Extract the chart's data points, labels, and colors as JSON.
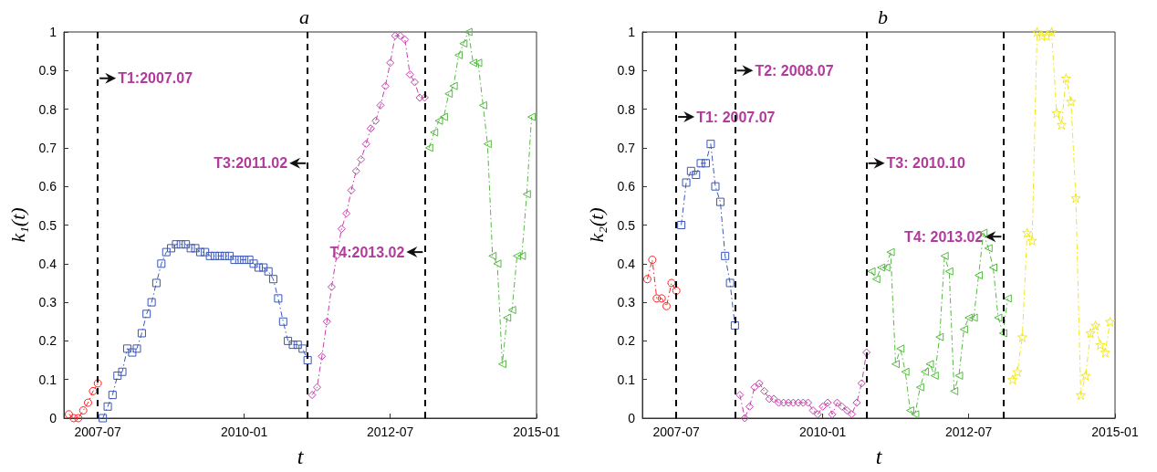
{
  "chart_data": [
    {
      "type": "line",
      "title": "a",
      "xlabel": "t",
      "ylabel": "k₁(t)",
      "xlim": [
        "2006-12",
        "2015-01"
      ],
      "xticks": [
        "2007-07",
        "2010-01",
        "2012-07",
        "2015-01"
      ],
      "ylim": [
        0,
        1
      ],
      "yticks": [
        0,
        0.1,
        0.2,
        0.3,
        0.4,
        0.5,
        0.6,
        0.7,
        0.8,
        0.9,
        1
      ],
      "grid": false,
      "legend": false,
      "line_style": "dashed",
      "series": [
        {
          "color": "#ff2020",
          "marker": "circle",
          "x": [
            "2007-01",
            "2007-02",
            "2007-03",
            "2007-04",
            "2007-05",
            "2007-06",
            "2007-07"
          ],
          "values": [
            0.01,
            0,
            0,
            0.02,
            0.04,
            0.07,
            0.09
          ]
        },
        {
          "color": "#3a56b8",
          "marker": "square",
          "x": [
            "2007-08",
            "2007-09",
            "2007-10",
            "2007-11",
            "2007-12",
            "2008-01",
            "2008-02",
            "2008-03",
            "2008-04",
            "2008-05",
            "2008-06",
            "2008-07",
            "2008-08",
            "2008-09",
            "2008-10",
            "2008-11",
            "2008-12",
            "2009-01",
            "2009-02",
            "2009-03",
            "2009-04",
            "2009-05",
            "2009-06",
            "2009-07",
            "2009-08",
            "2009-09",
            "2009-10",
            "2009-11",
            "2009-12",
            "2010-01",
            "2010-02",
            "2010-03",
            "2010-04",
            "2010-05",
            "2010-06",
            "2010-07",
            "2010-08",
            "2010-09",
            "2010-10",
            "2010-11",
            "2010-12",
            "2011-01",
            "2011-02"
          ],
          "values": [
            0,
            0.03,
            0.06,
            0.11,
            0.12,
            0.18,
            0.17,
            0.18,
            0.22,
            0.27,
            0.3,
            0.35,
            0.4,
            0.43,
            0.44,
            0.45,
            0.45,
            0.45,
            0.44,
            0.44,
            0.43,
            0.43,
            0.42,
            0.42,
            0.42,
            0.42,
            0.42,
            0.41,
            0.41,
            0.41,
            0.41,
            0.4,
            0.39,
            0.39,
            0.38,
            0.36,
            0.31,
            0.25,
            0.2,
            0.19,
            0.19,
            0.18,
            0.15
          ]
        },
        {
          "color": "#c040a8",
          "marker": "diamond",
          "x": [
            "2011-03",
            "2011-04",
            "2011-05",
            "2011-06",
            "2011-07",
            "2011-08",
            "2011-09",
            "2011-10",
            "2011-11",
            "2011-12",
            "2012-01",
            "2012-02",
            "2012-03",
            "2012-04",
            "2012-05",
            "2012-06",
            "2012-07",
            "2012-08",
            "2012-09",
            "2012-10",
            "2012-11",
            "2012-12",
            "2013-01",
            "2013-02"
          ],
          "values": [
            0.06,
            0.08,
            0.16,
            0.25,
            0.34,
            0.42,
            0.49,
            0.53,
            0.59,
            0.64,
            0.67,
            0.71,
            0.75,
            0.77,
            0.81,
            0.86,
            0.92,
            0.99,
            0.99,
            0.98,
            0.89,
            0.87,
            0.83,
            0.83
          ]
        },
        {
          "color": "#55bb40",
          "marker": "triangle",
          "x": [
            "2013-03",
            "2013-04",
            "2013-05",
            "2013-06",
            "2013-07",
            "2013-08",
            "2013-09",
            "2013-10",
            "2013-11",
            "2013-12",
            "2014-01",
            "2014-02",
            "2014-03",
            "2014-04",
            "2014-05",
            "2014-06",
            "2014-07",
            "2014-08",
            "2014-09",
            "2014-10",
            "2014-11",
            "2014-12"
          ],
          "values": [
            0.7,
            0.74,
            0.77,
            0.78,
            0.84,
            0.86,
            0.94,
            0.97,
            1,
            0.92,
            0.92,
            0.81,
            0.71,
            0.42,
            0.4,
            0.14,
            0.26,
            0.28,
            0.42,
            0.42,
            0.58,
            0.78
          ]
        }
      ],
      "ref_lines": [
        {
          "axis": "x",
          "value": "2007-07",
          "color": "#000000",
          "line_style": "dashed"
        },
        {
          "axis": "x",
          "value": "2011-02",
          "color": "#000000",
          "line_style": "dashed"
        },
        {
          "axis": "x",
          "value": "2013-02",
          "color": "#000000",
          "line_style": "dashed"
        }
      ],
      "annotations": [
        {
          "text": "T1:2007.07",
          "x": "2007-07",
          "y": 0.88
        },
        {
          "text": "T3:2011.02",
          "x": "2011-02",
          "y": 0.66
        },
        {
          "text": "T4:2013.02",
          "x": "2013-02",
          "y": 0.43
        }
      ]
    },
    {
      "type": "line",
      "title": "b",
      "xlabel": "t",
      "ylabel": "k₂(t)",
      "xlim": [
        "2006-12",
        "2015-01"
      ],
      "xticks": [
        "2007-07",
        "2010-01",
        "2012-07",
        "2015-01"
      ],
      "ylim": [
        0,
        1
      ],
      "yticks": [
        0,
        0.1,
        0.2,
        0.3,
        0.4,
        0.5,
        0.6,
        0.7,
        0.8,
        0.9,
        1
      ],
      "grid": false,
      "legend": false,
      "line_style": "dashed",
      "series": [
        {
          "color": "#ff2020",
          "marker": "circle",
          "x": [
            "2007-01",
            "2007-02",
            "2007-03",
            "2007-04",
            "2007-05",
            "2007-06",
            "2007-07"
          ],
          "values": [
            0.36,
            0.41,
            0.31,
            0.31,
            0.29,
            0.35,
            0.33
          ]
        },
        {
          "color": "#3a56b8",
          "marker": "square",
          "x": [
            "2007-08",
            "2007-09",
            "2007-10",
            "2007-11",
            "2007-12",
            "2008-01",
            "2008-02",
            "2008-03",
            "2008-04",
            "2008-05",
            "2008-06",
            "2008-07"
          ],
          "values": [
            0.5,
            0.61,
            0.64,
            0.63,
            0.66,
            0.66,
            0.71,
            0.6,
            0.56,
            0.42,
            0.35,
            0.24
          ]
        },
        {
          "color": "#c040a8",
          "marker": "diamond",
          "x": [
            "2008-08",
            "2008-09",
            "2008-10",
            "2008-11",
            "2008-12",
            "2009-01",
            "2009-02",
            "2009-03",
            "2009-04",
            "2009-05",
            "2009-06",
            "2009-07",
            "2009-08",
            "2009-09",
            "2009-10",
            "2009-11",
            "2009-12",
            "2010-01",
            "2010-02",
            "2010-03",
            "2010-04",
            "2010-05",
            "2010-06",
            "2010-07",
            "2010-08",
            "2010-09",
            "2010-10"
          ],
          "values": [
            0.06,
            0,
            0.03,
            0.08,
            0.09,
            0.07,
            0.05,
            0.05,
            0.04,
            0.04,
            0.04,
            0.04,
            0.04,
            0.04,
            0.04,
            0.02,
            0.01,
            0.03,
            0.04,
            0.01,
            0.04,
            0.03,
            0.02,
            0.01,
            0.04,
            0.09,
            0.17
          ]
        },
        {
          "color": "#55bb40",
          "marker": "triangle",
          "x": [
            "2010-11",
            "2010-12",
            "2011-01",
            "2011-02",
            "2011-03",
            "2011-04",
            "2011-05",
            "2011-06",
            "2011-07",
            "2011-08",
            "2011-09",
            "2011-10",
            "2011-11",
            "2011-12",
            "2012-01",
            "2012-02",
            "2012-03",
            "2012-04",
            "2012-05",
            "2012-06",
            "2012-07",
            "2012-08",
            "2012-09",
            "2012-10",
            "2012-11",
            "2012-12",
            "2013-01",
            "2013-02",
            "2013-03"
          ],
          "values": [
            0.38,
            0.36,
            0.39,
            0.39,
            0.43,
            0.14,
            0.18,
            0.12,
            0.02,
            0.01,
            0.08,
            0.12,
            0.14,
            0.11,
            0.21,
            0.42,
            0.38,
            0.07,
            0.11,
            0.23,
            0.26,
            0.26,
            0.37,
            0.48,
            0.44,
            0.39,
            0.26,
            0.22,
            0.31
          ]
        },
        {
          "color": "#f0e820",
          "marker": "star",
          "x": [
            "2013-04",
            "2013-05",
            "2013-06",
            "2013-07",
            "2013-08",
            "2013-09",
            "2013-10",
            "2013-11",
            "2013-12",
            "2014-01",
            "2014-02",
            "2014-03",
            "2014-04",
            "2014-05",
            "2014-06",
            "2014-07",
            "2014-08",
            "2014-09",
            "2014-10",
            "2014-11",
            "2014-12"
          ],
          "values": [
            0.1,
            0.12,
            0.21,
            0.48,
            0.46,
            1,
            0.99,
            0.99,
            1,
            0.79,
            0.76,
            0.88,
            0.82,
            0.57,
            0.06,
            0.11,
            0.22,
            0.24,
            0.19,
            0.17,
            0.25
          ]
        }
      ],
      "ref_lines": [
        {
          "axis": "x",
          "value": "2007-07",
          "color": "#000000",
          "line_style": "dashed"
        },
        {
          "axis": "x",
          "value": "2008-07",
          "color": "#000000",
          "line_style": "dashed"
        },
        {
          "axis": "x",
          "value": "2010-10",
          "color": "#000000",
          "line_style": "dashed"
        },
        {
          "axis": "x",
          "value": "2013-02",
          "color": "#000000",
          "line_style": "dashed"
        }
      ],
      "annotations": [
        {
          "text": "T1: 2007.07",
          "x": "2007-07",
          "y": 0.78
        },
        {
          "text": "T2: 2008.07",
          "x": "2008-07",
          "y": 0.9
        },
        {
          "text": "T3: 2010.10",
          "x": "2010-10",
          "y": 0.66
        },
        {
          "text": "T4: 2013.02",
          "x": "2013-02",
          "y": 0.47
        }
      ]
    }
  ]
}
